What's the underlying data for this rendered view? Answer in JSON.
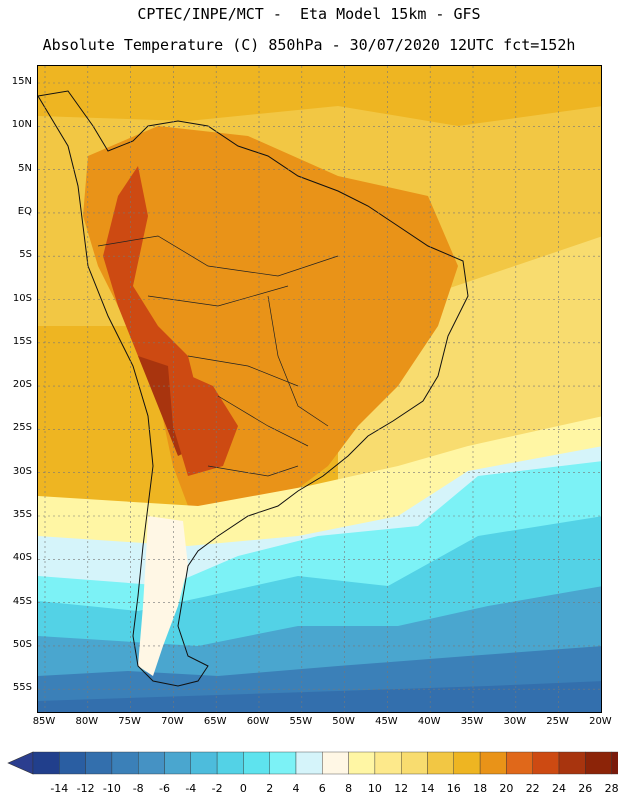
{
  "header": {
    "title_line1": "CPTEC/INPE/MCT -  Eta Model 15km - GFS",
    "title_line2": "Absolute Temperature (C) 850hPa - 30/07/2020 12UTC fct=152h"
  },
  "map": {
    "latitude_labels": [
      "15N",
      "10N",
      "5N",
      "EQ",
      "5S",
      "10S",
      "15S",
      "20S",
      "25S",
      "30S",
      "35S",
      "40S",
      "45S",
      "50S",
      "55S"
    ],
    "longitude_labels": [
      "85W",
      "80W",
      "75W",
      "70W",
      "65W",
      "60W",
      "55W",
      "50W",
      "45W",
      "40W",
      "35W",
      "30W",
      "25W",
      "20W"
    ],
    "region": "South America"
  },
  "colorbar": {
    "labels": [
      "-14",
      "-12",
      "-10",
      "-8",
      "-6",
      "-4",
      "-2",
      "0",
      "2",
      "4",
      "6",
      "8",
      "10",
      "12",
      "14",
      "16",
      "18",
      "20",
      "22",
      "24",
      "26",
      "28"
    ],
    "colors": [
      "#213f8c",
      "#2a5ea2",
      "#336fad",
      "#3b80b8",
      "#4592c4",
      "#4aa6cf",
      "#4dbcdc",
      "#53d2e6",
      "#5ee3ee",
      "#7cf2f6",
      "#d5f4fa",
      "#fff7e5",
      "#fff6a4",
      "#fde98b",
      "#f8dc6f",
      "#f2c744",
      "#eeb522",
      "#e99318",
      "#e0681a",
      "#cd4a12",
      "#a8340e",
      "#8c2408",
      "#7a1a0b"
    ],
    "under_color": "#2b3e8f",
    "over_color": "#7c0a2e"
  }
}
